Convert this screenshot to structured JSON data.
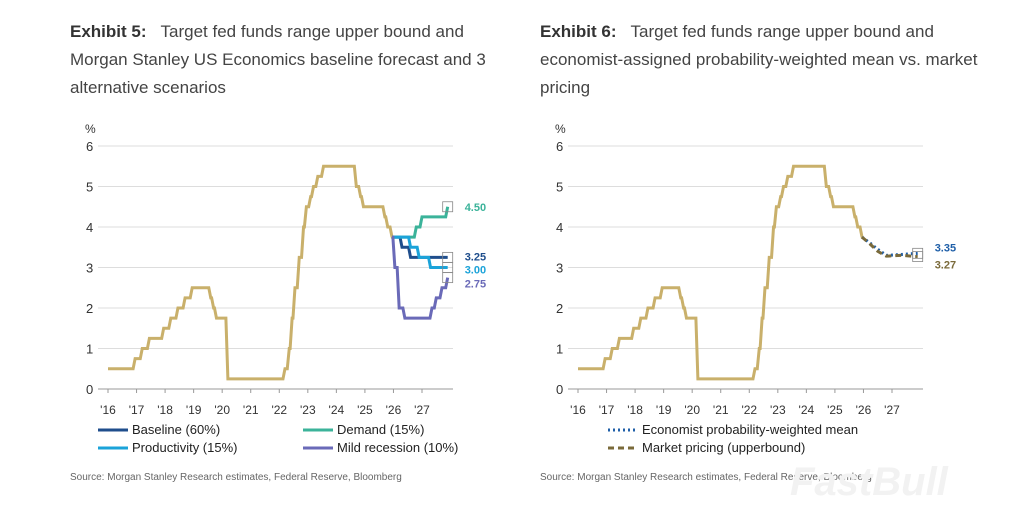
{
  "chart_data": [
    {
      "type": "line",
      "exhibit": "Exhibit 5:",
      "title": "Target fed funds range upper bound and Morgan Stanley US Economics baseline forecast and 3 alternative scenarios",
      "ylabel": "%",
      "ylim": [
        0,
        6
      ],
      "yticks": [
        "0",
        "1",
        "2",
        "3",
        "4",
        "5",
        "6"
      ],
      "xticks": [
        "'16",
        "'17",
        "'18",
        "'19",
        "'20",
        "'21",
        "'22",
        "'23",
        "'24",
        "'25",
        "'26",
        "'27"
      ],
      "xlim": [
        2015.8,
        2028
      ],
      "history": {
        "color": "#c9b06b",
        "x": [
          2016,
          2016.95,
          2017.2,
          2017.45,
          2017.95,
          2018.2,
          2018.45,
          2018.7,
          2018.95,
          2019.6,
          2019.7,
          2019.8,
          2020.2,
          2022.2,
          2022.35,
          2022.45,
          2022.55,
          2022.7,
          2022.85,
          2022.95,
          2023.1,
          2023.2,
          2023.35,
          2023.55,
          2024.7,
          2024.85,
          2024.95,
          2025.7,
          2025.8,
          2025.95
        ],
        "y": [
          0.5,
          0.75,
          1.0,
          1.25,
          1.5,
          1.75,
          2.0,
          2.25,
          2.5,
          2.25,
          2.0,
          1.75,
          0.25,
          0.5,
          1.0,
          1.75,
          2.5,
          3.25,
          4.0,
          4.5,
          4.75,
          5.0,
          5.25,
          5.5,
          5.0,
          4.75,
          4.5,
          4.25,
          4.0,
          3.75
        ]
      },
      "series": [
        {
          "name": "Baseline (60%)",
          "color": "#1f4e8c",
          "end_label": "3.25",
          "x": [
            2025.95,
            2026.3,
            2026.6,
            2027.9
          ],
          "y": [
            3.75,
            3.5,
            3.25,
            3.25
          ]
        },
        {
          "name": "Demand (15%)",
          "color": "#3bb39a",
          "end_label": "4.50",
          "x": [
            2025.95,
            2026.6,
            2026.8,
            2027.0,
            2027.9
          ],
          "y": [
            3.75,
            3.75,
            4.0,
            4.25,
            4.5
          ]
        },
        {
          "name": "Productivity (15%)",
          "color": "#1ba3d9",
          "end_label": "3.00",
          "x": [
            2025.95,
            2026.6,
            2026.9,
            2027.3,
            2027.9
          ],
          "y": [
            3.75,
            3.5,
            3.25,
            3.0,
            3.0
          ]
        },
        {
          "name": "Mild recession (10%)",
          "color": "#6a6ab8",
          "end_label": "2.75",
          "x": [
            2025.95,
            2026.05,
            2026.2,
            2026.4,
            2027.2,
            2027.35,
            2027.5,
            2027.7,
            2027.9
          ],
          "y": [
            3.75,
            3.0,
            2.0,
            1.75,
            1.75,
            2.0,
            2.25,
            2.5,
            2.75
          ]
        }
      ],
      "source": "Source: Morgan Stanley Research estimates, Federal Reserve, Bloomberg"
    },
    {
      "type": "line",
      "exhibit": "Exhibit 6:",
      "title": "Target fed funds range upper bound and economist-assigned probability-weighted mean vs. market pricing",
      "ylabel": "%",
      "ylim": [
        0,
        6
      ],
      "yticks": [
        "0",
        "1",
        "2",
        "3",
        "4",
        "5",
        "6"
      ],
      "xticks": [
        "'16",
        "'17",
        "'18",
        "'19",
        "'20",
        "'21",
        "'22",
        "'23",
        "'24",
        "'25",
        "'26",
        "'27"
      ],
      "xlim": [
        2015.8,
        2028
      ],
      "series": [
        {
          "name": "Economist probability-weighted mean",
          "color": "#1f5fa8",
          "dash": "2,3",
          "end_label": "3.35",
          "x": [
            2025.95,
            2026.2,
            2026.5,
            2026.8,
            2027.3,
            2027.9
          ],
          "y": [
            3.75,
            3.62,
            3.45,
            3.3,
            3.32,
            3.35
          ]
        },
        {
          "name": "Market pricing (upperbound)",
          "color": "#7a6a3a",
          "dash": "6,4",
          "end_label": "3.27",
          "x": [
            2025.95,
            2026.2,
            2026.5,
            2026.8,
            2027.3,
            2027.9
          ],
          "y": [
            3.75,
            3.6,
            3.4,
            3.28,
            3.3,
            3.27
          ]
        }
      ],
      "source": "Source: Morgan Stanley Research estimates, Federal Reserve, Bloomberg"
    }
  ]
}
